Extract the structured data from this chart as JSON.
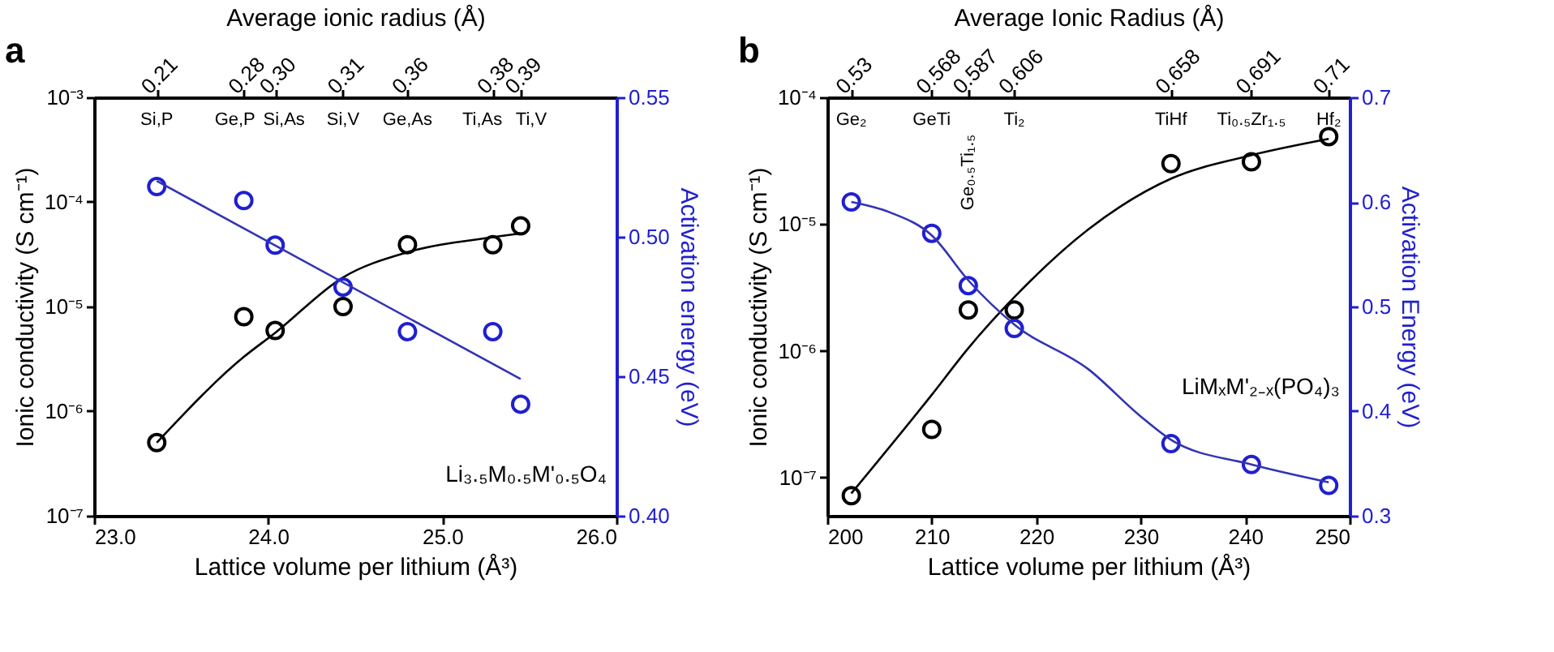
{
  "chart_data": [
    {
      "type": "scatter",
      "title": "a",
      "xlabel": "Lattice volume per lithium (Å³)",
      "ylabel": "Ionic conductivity (S cm⁻¹)",
      "y2label": "Activation energy (eV)",
      "x2label": "Average ionic radius (Å)",
      "xlim": [
        23.0,
        26.0
      ],
      "xticks": [
        {
          "value": 23,
          "label": "23.0"
        },
        {
          "value": 24,
          "label": "24.0"
        },
        {
          "value": 25,
          "label": "25.0"
        },
        {
          "value": 26,
          "label": "26.0"
        }
      ],
      "ylim": [
        1e-07,
        0.001
      ],
      "yticks": [
        {
          "value": 1e-07,
          "label": "10⁻⁷"
        },
        {
          "value": 1e-06,
          "label": "10⁻⁶"
        },
        {
          "value": 1e-05,
          "label": "10⁻⁵"
        },
        {
          "value": 0.0001,
          "label": "10⁻⁴"
        },
        {
          "value": 0.001,
          "label": "10⁻³"
        }
      ],
      "y2lim": [
        0.4,
        0.55
      ],
      "y2ticks": [
        {
          "value": 0.4,
          "label": "0.40"
        },
        {
          "value": 0.45,
          "label": "0.45"
        },
        {
          "value": 0.5,
          "label": "0.50"
        },
        {
          "value": 0.55,
          "label": "0.55"
        }
      ],
      "log": "y",
      "marker": "circle",
      "series": [
        {
          "color": "#000000",
          "x": [
            23.36,
            23.86,
            24.04,
            24.43,
            24.8,
            25.29,
            25.45
          ],
          "values": [
            5e-07,
            8e-06,
            5.9e-06,
            1e-05,
            3.9e-05,
            3.9e-05,
            5.9e-05
          ]
        },
        {
          "type": "line",
          "marker": "none",
          "color": "#000000",
          "x": [
            23.36,
            23.86,
            24.04,
            24.43,
            24.8,
            25.29,
            25.45
          ],
          "values": [
            5e-07,
            3.3e-06,
            5.6e-06,
            1.9e-05,
            3.3e-05,
            4.6e-05,
            5e-05
          ]
        },
        {
          "axis": "y2",
          "color": "#1f1fd0",
          "x": [
            23.36,
            23.86,
            24.04,
            24.43,
            24.8,
            25.29,
            25.45
          ],
          "values": [
            0.518,
            0.513,
            0.497,
            0.482,
            0.466,
            0.466,
            0.44
          ]
        },
        {
          "type": "line",
          "axis": "y2",
          "marker": "none",
          "color": "#3333b5",
          "x": [
            23.36,
            25.45
          ],
          "values": [
            0.52,
            0.449
          ]
        }
      ],
      "annotations": [
        {
          "text": "0.21",
          "x": 23.36
        },
        {
          "text": "0.28",
          "x": 23.86
        },
        {
          "text": "0.30",
          "x": 24.04
        },
        {
          "text": "0.31",
          "x": 24.43
        },
        {
          "text": "0.36",
          "x": 24.8
        },
        {
          "text": "0.38",
          "x": 25.29
        },
        {
          "text": "0.39",
          "x": 25.45
        },
        "Si,P",
        "Ge,P",
        "Si,As",
        "Si,V",
        "Ge,As",
        "Ti,As",
        "Ti,V",
        "Li₃.₅M₀.₅M'₀.₅O₄"
      ]
    },
    {
      "type": "scatter",
      "title": "b",
      "xlabel": "Lattice volume per lithium (Å³)",
      "ylabel": "Ionic conductivity (S cm⁻¹)",
      "y2label": "Activation Energy (eV)",
      "x2label": "Average Ionic Radius (Å)",
      "xlim": [
        200,
        250
      ],
      "xticks": [
        200,
        210,
        220,
        230,
        240,
        250
      ],
      "ylim": [
        5e-08,
        0.0001
      ],
      "yticks": [
        {
          "value": 1e-07,
          "label": "10⁻⁷"
        },
        {
          "value": 1e-06,
          "label": "10⁻⁶"
        },
        {
          "value": 1e-05,
          "label": "10⁻⁵"
        },
        {
          "value": 0.0001,
          "label": "10⁻⁴"
        }
      ],
      "y2lim": [
        0.3,
        0.7
      ],
      "y2ticks": [
        0.3,
        0.4,
        0.5,
        0.6,
        0.7
      ],
      "log": "y",
      "marker": "circle",
      "series": [
        {
          "color": "#000000",
          "x": [
            202.3,
            210.0,
            213.5,
            217.9,
            232.9,
            240.6,
            248.0
          ],
          "values": [
            7.2e-08,
            2.4e-07,
            2.1e-06,
            2.1e-06,
            3e-05,
            3.1e-05,
            4.9e-05
          ]
        },
        {
          "type": "line",
          "marker": "none",
          "color": "#000000",
          "x": [
            202.3,
            210,
            213.5,
            218,
            225,
            233,
            240,
            248
          ],
          "values": [
            7.5e-08,
            4.5e-07,
            1.05e-06,
            2.7e-06,
            9.1e-06,
            2.3e-05,
            3.4e-05,
            4.7e-05
          ]
        },
        {
          "axis": "y2",
          "color": "#1f1fd0",
          "x": [
            202.3,
            210.0,
            213.5,
            217.9,
            232.9,
            240.6,
            248.0
          ],
          "values": [
            0.6,
            0.57,
            0.52,
            0.479,
            0.369,
            0.349,
            0.329
          ]
        },
        {
          "type": "line",
          "axis": "y2",
          "marker": "none",
          "color": "#3333b5",
          "x": [
            202.3,
            206,
            210,
            213.5,
            218,
            225,
            230,
            233,
            240.6,
            248
          ],
          "values": [
            0.6,
            0.59,
            0.568,
            0.525,
            0.482,
            0.44,
            0.395,
            0.372,
            0.349,
            0.332
          ]
        }
      ],
      "annotations": [
        {
          "text": "0.53",
          "x": 202.3
        },
        {
          "text": "0.568",
          "x": 210.0
        },
        {
          "text": "0.587",
          "x": 213.5
        },
        {
          "text": "0.606",
          "x": 217.9
        },
        {
          "text": "0.658",
          "x": 232.9
        },
        {
          "text": "0.691",
          "x": 240.6
        },
        {
          "text": "0.71",
          "x": 248.0
        },
        "Ge₂",
        "GeTi",
        "Ge₀.₅Ti₁.₅",
        "Ti₂",
        "TiHf",
        "Ti₀.₅Zr₁.₅",
        "Hf₂",
        "LiMₓM'₂₋ₓ(PO₄)₃"
      ]
    }
  ]
}
